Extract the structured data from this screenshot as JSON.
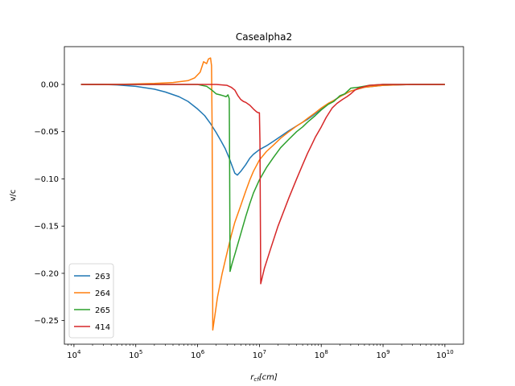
{
  "chart_data": {
    "type": "line",
    "title": "Casealpha2",
    "xlabel": "r_cf[cm]",
    "ylabel": "v/c",
    "xscale": "log",
    "xlim": [
      7000.0,
      20000000000.0
    ],
    "ylim": [
      -0.275,
      0.04
    ],
    "x_ticks": [
      {
        "value": 10000.0,
        "base": "10",
        "exp": "4"
      },
      {
        "value": 100000.0,
        "base": "10",
        "exp": "5"
      },
      {
        "value": 1000000.0,
        "base": "10",
        "exp": "6"
      },
      {
        "value": 10000000.0,
        "base": "10",
        "exp": "7"
      },
      {
        "value": 100000000.0,
        "base": "10",
        "exp": "8"
      },
      {
        "value": 1000000000.0,
        "base": "10",
        "exp": "9"
      },
      {
        "value": 10000000000.0,
        "base": "10",
        "exp": "10"
      }
    ],
    "y_ticks": [
      {
        "value": 0.0,
        "label": "0.00"
      },
      {
        "value": -0.05,
        "label": "−0.05"
      },
      {
        "value": -0.1,
        "label": "−0.10"
      },
      {
        "value": -0.15,
        "label": "−0.15"
      },
      {
        "value": -0.2,
        "label": "−0.20"
      },
      {
        "value": -0.25,
        "label": "−0.25"
      }
    ],
    "grid": false,
    "legend_position": "lower-left",
    "series": [
      {
        "name": "263",
        "color": "#1f77b4",
        "points": [
          [
            13000.0,
            0.0
          ],
          [
            30000.0,
            0.0
          ],
          [
            50000.0,
            -0.0005
          ],
          [
            100000.0,
            -0.002
          ],
          [
            200000.0,
            -0.005
          ],
          [
            300000.0,
            -0.008
          ],
          [
            500000.0,
            -0.013
          ],
          [
            700000.0,
            -0.018
          ],
          [
            1000000.0,
            -0.026
          ],
          [
            1300000.0,
            -0.033
          ],
          [
            1600000.0,
            -0.041
          ],
          [
            2000000.0,
            -0.051
          ],
          [
            2400000.0,
            -0.06
          ],
          [
            2800000.0,
            -0.068
          ],
          [
            3200000.0,
            -0.077
          ],
          [
            3600000.0,
            -0.086
          ],
          [
            4000000.0,
            -0.094
          ],
          [
            4400000.0,
            -0.096
          ],
          [
            5000000.0,
            -0.092
          ],
          [
            6000000.0,
            -0.085
          ],
          [
            7000000.0,
            -0.078
          ],
          [
            8000000.0,
            -0.074
          ],
          [
            10000000.0,
            -0.069
          ],
          [
            13000000.0,
            -0.065
          ],
          [
            17000000.0,
            -0.06
          ],
          [
            22000000.0,
            -0.055
          ],
          [
            30000000.0,
            -0.049
          ],
          [
            40000000.0,
            -0.044
          ],
          [
            50000000.0,
            -0.04
          ],
          [
            60000000.0,
            -0.037
          ],
          [
            80000000.0,
            -0.031
          ],
          [
            100000000.0,
            -0.026
          ],
          [
            120000000.0,
            -0.022
          ],
          [
            150000000.0,
            -0.018
          ],
          [
            200000000.0,
            -0.013
          ],
          [
            300000000.0,
            -0.007
          ],
          [
            500000000.0,
            -0.003
          ],
          [
            1000000000.0,
            -0.001
          ],
          [
            3000000000.0,
            0.0
          ],
          [
            10000000000.0,
            0.0
          ]
        ]
      },
      {
        "name": "264",
        "color": "#ff7f0e",
        "points": [
          [
            13000.0,
            0.0
          ],
          [
            50000.0,
            0.0
          ],
          [
            100000.0,
            0.0005
          ],
          [
            200000.0,
            0.001
          ],
          [
            400000.0,
            0.002
          ],
          [
            700000.0,
            0.004
          ],
          [
            900000.0,
            0.007
          ],
          [
            1100000.0,
            0.013
          ],
          [
            1250000.0,
            0.024
          ],
          [
            1400000.0,
            0.022
          ],
          [
            1500000.0,
            0.027
          ],
          [
            1620000.0,
            0.028
          ],
          [
            1680000.0,
            0.02
          ],
          [
            1720000.0,
            -0.05
          ],
          [
            1760000.0,
            -0.26
          ],
          [
            1900000.0,
            -0.245
          ],
          [
            2100000.0,
            -0.225
          ],
          [
            2500000.0,
            -0.2
          ],
          [
            3000000.0,
            -0.178
          ],
          [
            3500000.0,
            -0.16
          ],
          [
            4000000.0,
            -0.146
          ],
          [
            5000000.0,
            -0.128
          ],
          [
            6000000.0,
            -0.113
          ],
          [
            7000000.0,
            -0.101
          ],
          [
            8000000.0,
            -0.092
          ],
          [
            10000000.0,
            -0.08
          ],
          [
            13000000.0,
            -0.071
          ],
          [
            17000000.0,
            -0.064
          ],
          [
            22000000.0,
            -0.057
          ],
          [
            30000000.0,
            -0.05
          ],
          [
            40000000.0,
            -0.044
          ],
          [
            50000000.0,
            -0.04
          ],
          [
            60000000.0,
            -0.036
          ],
          [
            80000000.0,
            -0.03
          ],
          [
            100000000.0,
            -0.025
          ],
          [
            130000000.0,
            -0.02
          ],
          [
            160000000.0,
            -0.017
          ],
          [
            200000000.0,
            -0.013
          ],
          [
            300000000.0,
            -0.007
          ],
          [
            500000000.0,
            -0.003
          ],
          [
            1000000000.0,
            -0.001
          ],
          [
            3000000000.0,
            0.0
          ],
          [
            10000000000.0,
            0.0
          ]
        ]
      },
      {
        "name": "265",
        "color": "#2ca02c",
        "points": [
          [
            13000.0,
            0.0
          ],
          [
            100000.0,
            0.0
          ],
          [
            500000.0,
            0.0
          ],
          [
            1000000.0,
            0.0
          ],
          [
            1400000.0,
            -0.002
          ],
          [
            1700000.0,
            -0.006
          ],
          [
            2000000.0,
            -0.01
          ],
          [
            2300000.0,
            -0.011
          ],
          [
            2600000.0,
            -0.012
          ],
          [
            2900000.0,
            -0.013
          ],
          [
            3100000.0,
            -0.011
          ],
          [
            3250000.0,
            -0.015
          ],
          [
            3300000.0,
            -0.09
          ],
          [
            3350000.0,
            -0.198
          ],
          [
            3600000.0,
            -0.19
          ],
          [
            4000000.0,
            -0.18
          ],
          [
            5000000.0,
            -0.158
          ],
          [
            6000000.0,
            -0.14
          ],
          [
            7000000.0,
            -0.126
          ],
          [
            8000000.0,
            -0.115
          ],
          [
            10000000.0,
            -0.101
          ],
          [
            13000000.0,
            -0.088
          ],
          [
            17000000.0,
            -0.077
          ],
          [
            22000000.0,
            -0.067
          ],
          [
            30000000.0,
            -0.058
          ],
          [
            40000000.0,
            -0.05
          ],
          [
            50000000.0,
            -0.045
          ],
          [
            60000000.0,
            -0.04
          ],
          [
            80000000.0,
            -0.033
          ],
          [
            100000000.0,
            -0.027
          ],
          [
            130000000.0,
            -0.021
          ],
          [
            160000000.0,
            -0.018
          ],
          [
            200000000.0,
            -0.012
          ],
          [
            240000000.0,
            -0.01
          ],
          [
            300000000.0,
            -0.004
          ],
          [
            400000000.0,
            -0.003
          ],
          [
            600000000.0,
            -0.001
          ],
          [
            1000000000.0,
            0.0
          ],
          [
            3000000000.0,
            0.0
          ],
          [
            10000000000.0,
            0.0
          ]
        ]
      },
      {
        "name": "414",
        "color": "#d62728",
        "points": [
          [
            13000.0,
            0.0
          ],
          [
            100000.0,
            0.0
          ],
          [
            1000000.0,
            0.0
          ],
          [
            2000000.0,
            0.0
          ],
          [
            3000000.0,
            -0.001
          ],
          [
            3500000.0,
            -0.003
          ],
          [
            4000000.0,
            -0.006
          ],
          [
            4500000.0,
            -0.012
          ],
          [
            5000000.0,
            -0.016
          ],
          [
            5500000.0,
            -0.018
          ],
          [
            6000000.0,
            -0.019
          ],
          [
            7000000.0,
            -0.022
          ],
          [
            8000000.0,
            -0.026
          ],
          [
            9000000.0,
            -0.029
          ],
          [
            9600000.0,
            -0.03
          ],
          [
            10000000.0,
            -0.03
          ],
          [
            10200000.0,
            -0.06
          ],
          [
            10500000.0,
            -0.211
          ],
          [
            12000000.0,
            -0.195
          ],
          [
            15000000.0,
            -0.175
          ],
          [
            20000000.0,
            -0.15
          ],
          [
            30000000.0,
            -0.12
          ],
          [
            40000000.0,
            -0.1
          ],
          [
            50000000.0,
            -0.085
          ],
          [
            60000000.0,
            -0.073
          ],
          [
            70000000.0,
            -0.064
          ],
          [
            80000000.0,
            -0.056
          ],
          [
            100000000.0,
            -0.045
          ],
          [
            120000000.0,
            -0.035
          ],
          [
            150000000.0,
            -0.025
          ],
          [
            180000000.0,
            -0.02
          ],
          [
            220000000.0,
            -0.016
          ],
          [
            260000000.0,
            -0.013
          ],
          [
            300000000.0,
            -0.01
          ],
          [
            350000000.0,
            -0.006
          ],
          [
            400000000.0,
            -0.004
          ],
          [
            600000000.0,
            -0.001
          ],
          [
            1000000000.0,
            0.0
          ],
          [
            3000000000.0,
            0.0
          ],
          [
            10000000000.0,
            0.0
          ]
        ]
      }
    ]
  }
}
